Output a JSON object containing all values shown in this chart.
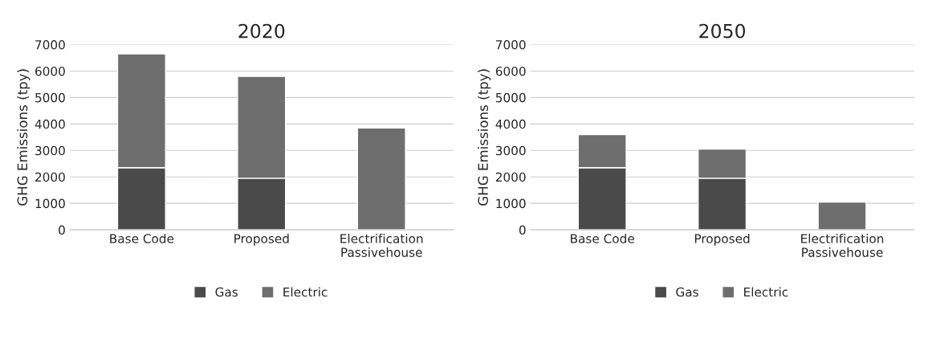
{
  "chart_data": [
    {
      "type": "bar",
      "title": "2020",
      "ylabel": "GHG Emissions (tpy)",
      "categories": [
        "Base Code",
        "Proposed",
        "Electrification\nPassivehouse"
      ],
      "stacked": true,
      "series": [
        {
          "name": "Gas",
          "color": "#4a4a4a",
          "values": [
            2350,
            1950,
            0
          ]
        },
        {
          "name": "Electric",
          "color": "#6e6e6e",
          "values": [
            4300,
            3850,
            3850
          ]
        }
      ],
      "ylim": [
        0,
        7000
      ],
      "yticks": [
        0,
        1000,
        2000,
        3000,
        4000,
        5000,
        6000,
        7000
      ],
      "grid": "y",
      "legend": "bottom"
    },
    {
      "type": "bar",
      "title": "2050",
      "ylabel": "GHG Emissions (tpy)",
      "categories": [
        "Base Code",
        "Proposed",
        "Electrification\nPassivehouse"
      ],
      "stacked": true,
      "series": [
        {
          "name": "Gas",
          "color": "#4a4a4a",
          "values": [
            2350,
            1950,
            0
          ]
        },
        {
          "name": "Electric",
          "color": "#6e6e6e",
          "values": [
            1250,
            1100,
            1050
          ]
        }
      ],
      "ylim": [
        0,
        7000
      ],
      "yticks": [
        0,
        1000,
        2000,
        3000,
        4000,
        5000,
        6000,
        7000
      ],
      "grid": "y",
      "legend": "bottom"
    }
  ]
}
